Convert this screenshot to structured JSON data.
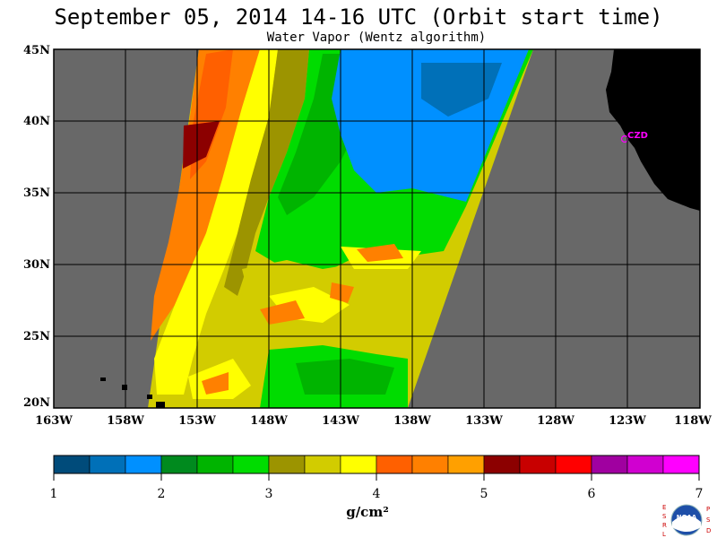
{
  "title": "September 05, 2014  14-16 UTC  (Orbit start time)",
  "subtitle": "Water Vapor (Wentz algorithm)",
  "map": {
    "lat_labels": [
      "45N",
      "40N",
      "35N",
      "30N",
      "25N",
      "20N"
    ],
    "lon_labels": [
      "163W",
      "158W",
      "153W",
      "148W",
      "143W",
      "138W",
      "133W",
      "128W",
      "123W",
      "118W"
    ],
    "station_label": "CZD",
    "colors": {
      "no_data": "#686868",
      "land": "#000000",
      "grid": "#000000",
      "station": "#ff00ff"
    }
  },
  "colorbar": {
    "tick_labels": [
      "1",
      "2",
      "3",
      "4",
      "5",
      "6",
      "7"
    ],
    "units": "g/cm²",
    "colors": [
      "#004b7a",
      "#0070b8",
      "#0090ff",
      "#008a1e",
      "#00b400",
      "#00dc00",
      "#9c9400",
      "#d2cc00",
      "#ffff00",
      "#ff6000",
      "#ff8000",
      "#ffa000",
      "#8c0000",
      "#c80000",
      "#ff0000",
      "#a000a0",
      "#d000d0",
      "#ff00ff"
    ]
  },
  "logo": {
    "left_letters": "ESRL",
    "right_letters": "PSD",
    "center": "NOAA"
  }
}
